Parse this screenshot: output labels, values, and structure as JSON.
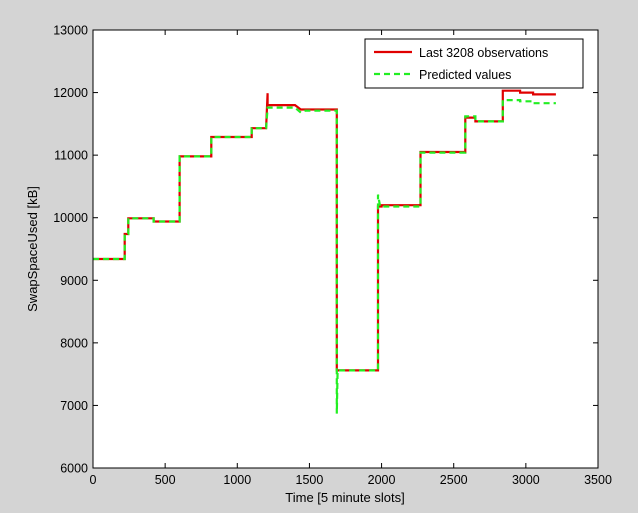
{
  "chart_data": {
    "type": "line",
    "xlabel": "Time [5 minute slots]",
    "ylabel": "SwapSpaceUsed [kB]",
    "xlim": [
      0,
      3500
    ],
    "ylim": [
      6000,
      13000
    ],
    "xticks": [
      0,
      500,
      1000,
      1500,
      2000,
      2500,
      3000,
      3500
    ],
    "yticks": [
      6000,
      7000,
      8000,
      9000,
      10000,
      11000,
      12000,
      13000
    ],
    "legend_position": "top-right",
    "series": [
      {
        "name": "Last 3208 observations",
        "color": "#e00000",
        "dash": "solid",
        "points": [
          [
            0,
            9340
          ],
          [
            220,
            9340
          ],
          [
            220,
            9740
          ],
          [
            245,
            9740
          ],
          [
            245,
            9990
          ],
          [
            420,
            9990
          ],
          [
            420,
            9940
          ],
          [
            600,
            9940
          ],
          [
            600,
            10980
          ],
          [
            820,
            10980
          ],
          [
            820,
            11290
          ],
          [
            1100,
            11290
          ],
          [
            1100,
            11430
          ],
          [
            1200,
            11430
          ],
          [
            1210,
            11990
          ],
          [
            1210,
            11800
          ],
          [
            1400,
            11800
          ],
          [
            1440,
            11730
          ],
          [
            1690,
            11730
          ],
          [
            1690,
            7560
          ],
          [
            1975,
            7560
          ],
          [
            1975,
            10180
          ],
          [
            2000,
            10180
          ],
          [
            2000,
            10200
          ],
          [
            2270,
            10200
          ],
          [
            2270,
            11050
          ],
          [
            2580,
            11050
          ],
          [
            2580,
            11600
          ],
          [
            2650,
            11600
          ],
          [
            2650,
            11540
          ],
          [
            2840,
            11540
          ],
          [
            2840,
            12030
          ],
          [
            2960,
            12030
          ],
          [
            2960,
            12000
          ],
          [
            3050,
            12000
          ],
          [
            3050,
            11970
          ],
          [
            3208,
            11970
          ]
        ]
      },
      {
        "name": "Predicted values",
        "color": "#22ee22",
        "dash": "6,4",
        "points": [
          [
            0,
            9340
          ],
          [
            220,
            9340
          ],
          [
            220,
            9740
          ],
          [
            245,
            9740
          ],
          [
            245,
            9990
          ],
          [
            420,
            9990
          ],
          [
            420,
            9940
          ],
          [
            600,
            9940
          ],
          [
            600,
            10980
          ],
          [
            820,
            10980
          ],
          [
            820,
            11290
          ],
          [
            1100,
            11290
          ],
          [
            1100,
            11430
          ],
          [
            1200,
            11430
          ],
          [
            1210,
            11760
          ],
          [
            1400,
            11760
          ],
          [
            1440,
            11680
          ],
          [
            1470,
            11710
          ],
          [
            1690,
            11710
          ],
          [
            1690,
            6870
          ],
          [
            1695,
            7560
          ],
          [
            1975,
            7560
          ],
          [
            1975,
            10370
          ],
          [
            1990,
            10180
          ],
          [
            2270,
            10180
          ],
          [
            2270,
            11040
          ],
          [
            2580,
            11040
          ],
          [
            2580,
            11620
          ],
          [
            2650,
            11620
          ],
          [
            2650,
            11540
          ],
          [
            2840,
            11540
          ],
          [
            2840,
            11880
          ],
          [
            2960,
            11880
          ],
          [
            2960,
            11860
          ],
          [
            3050,
            11860
          ],
          [
            3050,
            11830
          ],
          [
            3208,
            11830
          ]
        ]
      }
    ]
  }
}
